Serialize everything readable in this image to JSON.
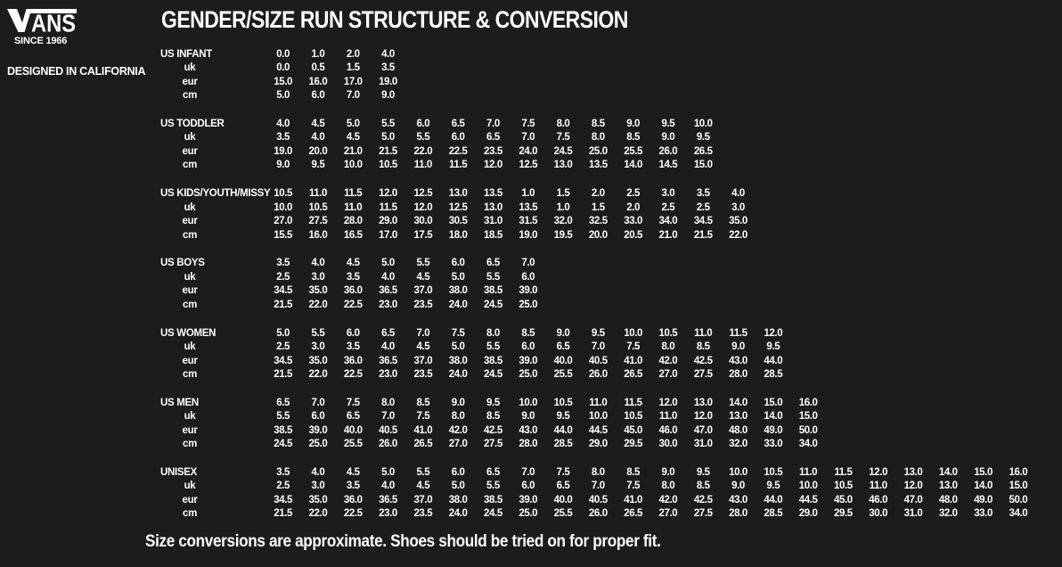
{
  "colors": {
    "background": "#1c1c1c",
    "text": "#fdfdfd"
  },
  "brand": {
    "logo_text": "VANS",
    "since": "SINCE 1966",
    "designed": "DESIGNED IN CALIFORNIA"
  },
  "title": "GENDER/SIZE RUN STRUCTURE & CONVERSION",
  "footer": "Size conversions are approximate. Shoes should be tried on for proper fit.",
  "row_labels": {
    "uk": "uk",
    "eur": "eur",
    "cm": "cm"
  },
  "size_chart": {
    "type": "table",
    "sections": [
      {
        "label": "US INFANT",
        "us": [
          "0.0",
          "1.0",
          "2.0",
          "4.0"
        ],
        "uk": [
          "0.0",
          "0.5",
          "1.5",
          "3.5"
        ],
        "eur": [
          "15.0",
          "16.0",
          "17.0",
          "19.0"
        ],
        "cm": [
          "5.0",
          "6.0",
          "7.0",
          "9.0"
        ]
      },
      {
        "label": "US TODDLER",
        "us": [
          "4.0",
          "4.5",
          "5.0",
          "5.5",
          "6.0",
          "6.5",
          "7.0",
          "7.5",
          "8.0",
          "8.5",
          "9.0",
          "9.5",
          "10.0"
        ],
        "uk": [
          "3.5",
          "4.0",
          "4.5",
          "5.0",
          "5.5",
          "6.0",
          "6.5",
          "7.0",
          "7.5",
          "8.0",
          "8.5",
          "9.0",
          "9.5"
        ],
        "eur": [
          "19.0",
          "20.0",
          "21.0",
          "21.5",
          "22.0",
          "22.5",
          "23.5",
          "24.0",
          "24.5",
          "25.0",
          "25.5",
          "26.0",
          "26.5"
        ],
        "cm": [
          "9.0",
          "9.5",
          "10.0",
          "10.5",
          "11.0",
          "11.5",
          "12.0",
          "12.5",
          "13.0",
          "13.5",
          "14.0",
          "14.5",
          "15.0"
        ]
      },
      {
        "label": "US KIDS/YOUTH/MISSY",
        "us": [
          "10.5",
          "11.0",
          "11.5",
          "12.0",
          "12.5",
          "13.0",
          "13.5",
          "1.0",
          "1.5",
          "2.0",
          "2.5",
          "3.0",
          "3.5",
          "4.0"
        ],
        "uk": [
          "10.0",
          "10.5",
          "11.0",
          "11.5",
          "12.0",
          "12.5",
          "13.0",
          "13.5",
          "1.0",
          "1.5",
          "2.0",
          "2.5",
          "2.5",
          "3.0"
        ],
        "eur": [
          "27.0",
          "27.5",
          "28.0",
          "29.0",
          "30.0",
          "30.5",
          "31.0",
          "31.5",
          "32.0",
          "32.5",
          "33.0",
          "34.0",
          "34.5",
          "35.0"
        ],
        "cm": [
          "15.5",
          "16.0",
          "16.5",
          "17.0",
          "17.5",
          "18.0",
          "18.5",
          "19.0",
          "19.5",
          "20.0",
          "20.5",
          "21.0",
          "21.5",
          "22.0"
        ]
      },
      {
        "label": "US BOYS",
        "us": [
          "3.5",
          "4.0",
          "4.5",
          "5.0",
          "5.5",
          "6.0",
          "6.5",
          "7.0"
        ],
        "uk": [
          "2.5",
          "3.0",
          "3.5",
          "4.0",
          "4.5",
          "5.0",
          "5.5",
          "6.0"
        ],
        "eur": [
          "34.5",
          "35.0",
          "36.0",
          "36.5",
          "37.0",
          "38.0",
          "38.5",
          "39.0"
        ],
        "cm": [
          "21.5",
          "22.0",
          "22.5",
          "23.0",
          "23.5",
          "24.0",
          "24.5",
          "25.0"
        ]
      },
      {
        "label": "US WOMEN",
        "us": [
          "5.0",
          "5.5",
          "6.0",
          "6.5",
          "7.0",
          "7.5",
          "8.0",
          "8.5",
          "9.0",
          "9.5",
          "10.0",
          "10.5",
          "11.0",
          "11.5",
          "12.0"
        ],
        "uk": [
          "2.5",
          "3.0",
          "3.5",
          "4.0",
          "4.5",
          "5.0",
          "5.5",
          "6.0",
          "6.5",
          "7.0",
          "7.5",
          "8.0",
          "8.5",
          "9.0",
          "9.5"
        ],
        "eur": [
          "34.5",
          "35.0",
          "36.0",
          "36.5",
          "37.0",
          "38.0",
          "38.5",
          "39.0",
          "40.0",
          "40.5",
          "41.0",
          "42.0",
          "42.5",
          "43.0",
          "44.0"
        ],
        "cm": [
          "21.5",
          "22.0",
          "22.5",
          "23.0",
          "23.5",
          "24.0",
          "24.5",
          "25.0",
          "25.5",
          "26.0",
          "26.5",
          "27.0",
          "27.5",
          "28.0",
          "28.5"
        ]
      },
      {
        "label": "US MEN",
        "us": [
          "6.5",
          "7.0",
          "7.5",
          "8.0",
          "8.5",
          "9.0",
          "9.5",
          "10.0",
          "10.5",
          "11.0",
          "11.5",
          "12.0",
          "13.0",
          "14.0",
          "15.0",
          "16.0"
        ],
        "uk": [
          "5.5",
          "6.0",
          "6.5",
          "7.0",
          "7.5",
          "8.0",
          "8.5",
          "9.0",
          "9.5",
          "10.0",
          "10.5",
          "11.0",
          "12.0",
          "13.0",
          "14.0",
          "15.0"
        ],
        "eur": [
          "38.5",
          "39.0",
          "40.0",
          "40.5",
          "41.0",
          "42.0",
          "42.5",
          "43.0",
          "44.0",
          "44.5",
          "45.0",
          "46.0",
          "47.0",
          "48.0",
          "49.0",
          "50.0"
        ],
        "cm": [
          "24.5",
          "25.0",
          "25.5",
          "26.0",
          "26.5",
          "27.0",
          "27.5",
          "28.0",
          "28.5",
          "29.0",
          "29.5",
          "30.0",
          "31.0",
          "32.0",
          "33.0",
          "34.0"
        ]
      },
      {
        "label": "UNISEX",
        "us": [
          "3.5",
          "4.0",
          "4.5",
          "5.0",
          "5.5",
          "6.0",
          "6.5",
          "7.0",
          "7.5",
          "8.0",
          "8.5",
          "9.0",
          "9.5",
          "10.0",
          "10.5",
          "11.0",
          "11.5",
          "12.0",
          "13.0",
          "14.0",
          "15.0",
          "16.0"
        ],
        "uk": [
          "2.5",
          "3.0",
          "3.5",
          "4.0",
          "4.5",
          "5.0",
          "5.5",
          "6.0",
          "6.5",
          "7.0",
          "7.5",
          "8.0",
          "8.5",
          "9.0",
          "9.5",
          "10.0",
          "10.5",
          "11.0",
          "12.0",
          "13.0",
          "14.0",
          "15.0"
        ],
        "eur": [
          "34.5",
          "35.0",
          "36.0",
          "36.5",
          "37.0",
          "38.0",
          "38.5",
          "39.0",
          "40.0",
          "40.5",
          "41.0",
          "42.0",
          "42.5",
          "43.0",
          "44.0",
          "44.5",
          "45.0",
          "46.0",
          "47.0",
          "48.0",
          "49.0",
          "50.0"
        ],
        "cm": [
          "21.5",
          "22.0",
          "22.5",
          "23.0",
          "23.5",
          "24.0",
          "24.5",
          "25.0",
          "25.5",
          "26.0",
          "26.5",
          "27.0",
          "27.5",
          "28.0",
          "28.5",
          "29.0",
          "29.5",
          "30.0",
          "31.0",
          "32.0",
          "33.0",
          "34.0"
        ]
      }
    ]
  }
}
